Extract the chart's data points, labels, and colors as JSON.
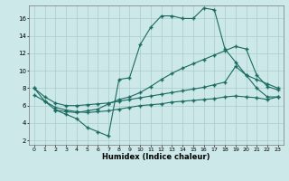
{
  "xlabel": "Humidex (Indice chaleur)",
  "bg_color": "#cce8e8",
  "line_color": "#1a6b60",
  "grid_color": "#aacccc",
  "xlim": [
    -0.5,
    23.5
  ],
  "ylim": [
    1.5,
    17.5
  ],
  "xticks": [
    0,
    1,
    2,
    3,
    4,
    5,
    6,
    7,
    8,
    9,
    10,
    11,
    12,
    13,
    14,
    15,
    16,
    17,
    18,
    19,
    20,
    21,
    22,
    23
  ],
  "yticks": [
    2,
    4,
    6,
    8,
    10,
    12,
    14,
    16
  ],
  "line1_x": [
    0,
    1,
    2,
    3,
    4,
    5,
    6,
    7,
    8,
    9,
    10,
    11,
    12,
    13,
    14,
    15,
    16,
    17,
    18,
    19,
    20,
    21,
    22,
    23
  ],
  "line1_y": [
    8.0,
    6.5,
    5.5,
    5.0,
    4.5,
    3.5,
    3.0,
    2.5,
    9.0,
    9.2,
    13.0,
    15.0,
    16.3,
    16.3,
    16.0,
    16.0,
    17.2,
    17.0,
    12.5,
    11.0,
    9.5,
    8.0,
    7.0,
    7.0
  ],
  "line2_x": [
    0,
    1,
    2,
    3,
    4,
    5,
    6,
    7,
    8,
    9,
    10,
    11,
    12,
    13,
    14,
    15,
    16,
    17,
    18,
    19,
    20,
    21,
    22,
    23
  ],
  "line2_y": [
    8.0,
    7.0,
    6.3,
    6.0,
    6.0,
    6.1,
    6.2,
    6.3,
    6.5,
    6.7,
    6.9,
    7.1,
    7.3,
    7.5,
    7.7,
    7.9,
    8.1,
    8.4,
    8.7,
    10.5,
    9.5,
    9.0,
    8.5,
    8.0
  ],
  "line3_x": [
    0,
    1,
    2,
    3,
    4,
    5,
    6,
    7,
    8,
    9,
    10,
    11,
    12,
    13,
    14,
    15,
    16,
    17,
    18,
    19,
    20,
    21,
    22,
    23
  ],
  "line3_y": [
    7.2,
    6.5,
    5.8,
    5.5,
    5.3,
    5.2,
    5.3,
    5.4,
    5.6,
    5.8,
    6.0,
    6.1,
    6.2,
    6.4,
    6.5,
    6.6,
    6.7,
    6.8,
    7.0,
    7.1,
    7.0,
    6.9,
    6.7,
    7.0
  ],
  "line4_x": [
    2,
    3,
    4,
    5,
    6,
    7,
    8,
    9,
    10,
    11,
    12,
    13,
    14,
    15,
    16,
    17,
    18,
    19,
    20,
    21,
    22,
    23
  ],
  "line4_y": [
    5.5,
    5.3,
    5.2,
    5.4,
    5.6,
    6.2,
    6.7,
    7.0,
    7.5,
    8.2,
    9.0,
    9.7,
    10.3,
    10.8,
    11.3,
    11.8,
    12.3,
    12.8,
    12.5,
    9.5,
    8.2,
    7.8
  ]
}
